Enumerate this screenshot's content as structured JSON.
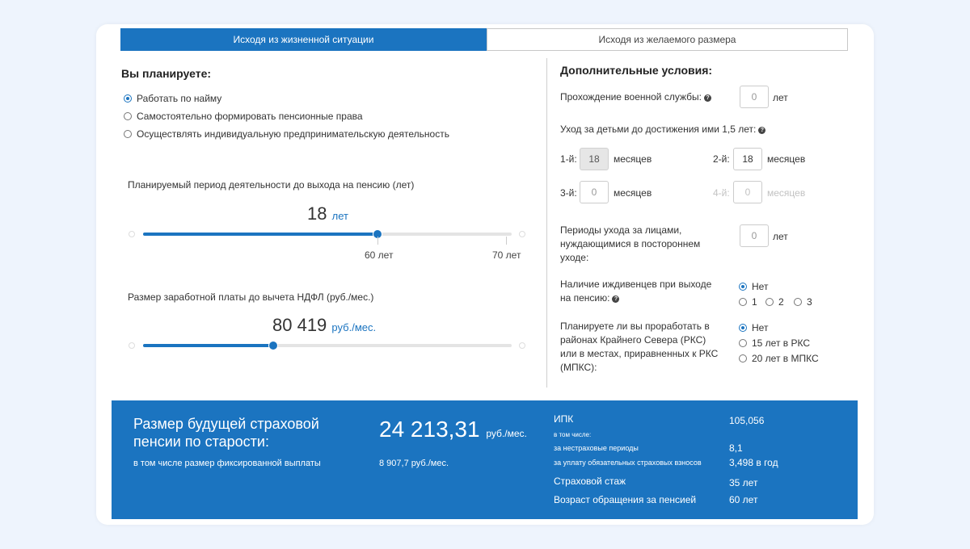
{
  "tabs": {
    "life_situation": "Исходя из жизненной ситуации",
    "desired_size": "Исходя из желаемого размера"
  },
  "plan": {
    "heading": "Вы планируете:",
    "options": [
      "Работать по найму",
      "Самостоятельно формировать пенсионные права",
      "Осуществлять индивидуальную предпринимательскую деятельность"
    ],
    "selected": 0
  },
  "period": {
    "label": "Планируемый период деятельности до выхода на пенсию (лет)",
    "value": "18",
    "unit": "лет",
    "min": 0,
    "max": 70,
    "current": 18,
    "tick_60": "60 лет",
    "tick_70": "70 лет"
  },
  "salary": {
    "label": "Размер заработной платы до вычета НДФЛ (руб./мес.)",
    "value": "80 419",
    "unit": "руб./мес.",
    "fraction": 0.35
  },
  "extra": {
    "heading": "Дополнительные условия:",
    "military_label": "Прохождение военной службы:",
    "military_placeholder": "0",
    "military_unit": "лет",
    "childcare_label": "Уход за детьми до достижения ими 1,5 лет:",
    "child1_label": "1-й:",
    "child1_value": "18",
    "child1_unit": "месяцев",
    "child2_label": "2-й:",
    "child2_value": "18",
    "child2_unit": "месяцев",
    "child3_label": "3-й:",
    "child3_placeholder": "0",
    "child3_unit": "месяцев",
    "child4_label": "4-й:",
    "child4_placeholder": "0",
    "child4_unit": "месяцев",
    "care_label_1": "Периоды ухода за лицами,",
    "care_label_2": "нуждающимися в постороннем",
    "care_label_3": "уходе:",
    "care_placeholder": "0",
    "care_unit": "лет",
    "dependents_label_1": "Наличие иждивенцев при выходе",
    "dependents_label_2": "на пенсию:",
    "dependents_options": [
      "Нет",
      "1",
      "2",
      "3"
    ],
    "north_label_1": "Планируете ли вы проработать в",
    "north_label_2": "районах Крайнего Севера (РКС)",
    "north_label_3": "или в местах, приравненных к РКС",
    "north_label_4": "(МПКС):",
    "north_options": [
      "Нет",
      "15 лет в РКС",
      "20 лет в МПКС"
    ]
  },
  "result": {
    "title_1": "Размер будущей страховой",
    "title_2": "пенсии по старости:",
    "amount": "24 213,31",
    "amount_unit": "руб./мес.",
    "fixed_label": "в том числе размер фиксированной выплаты",
    "fixed_value": "8 907,7 руб./мес.",
    "ipk_label": "ИПК",
    "ipk_value": "105,056",
    "including": "в том числе:",
    "nonins_label": "за нестраховые периоды",
    "nonins_value": "8,1",
    "contrib_label": "за уплату обязательных страховых взносов",
    "contrib_value": "3,498 в год",
    "exp_label": "Страховой стаж",
    "exp_value": "35 лет",
    "age_label": "Возраст обращения за пенсией",
    "age_value": "60 лет"
  }
}
